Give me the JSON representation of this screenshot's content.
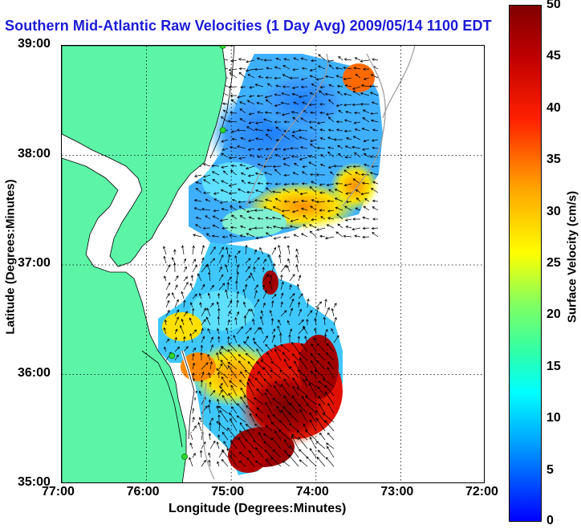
{
  "title": "Southern Mid-Atlantic Raw Velocities (1 Day Avg) 2009/05/14 1100 EDT",
  "xaxis": {
    "label": "Longitude (Degrees:Minutes)",
    "ticks": [
      "77:00",
      "76:00",
      "75:00",
      "74:00",
      "73:00",
      "72:00"
    ],
    "range": [
      -77,
      -72
    ]
  },
  "yaxis": {
    "label": "Latitude (Degrees:Minutes)",
    "ticks": [
      "39:00",
      "38:00",
      "37:00",
      "36:00",
      "35:00"
    ],
    "range": [
      35,
      39
    ]
  },
  "colorbar": {
    "label": "Surface Velocity (cm/s)",
    "ticks": [
      "50",
      "45",
      "40",
      "35",
      "30",
      "25",
      "20",
      "15",
      "10",
      "5",
      "0"
    ],
    "range": [
      0,
      50
    ]
  },
  "colors": {
    "land": "#5cf5a8",
    "title": "#1a1ad6",
    "stations": "#2fd62f",
    "grid": "#000000"
  },
  "map_features": {
    "stations": [
      {
        "lon": -75.1,
        "lat": 39.0
      },
      {
        "lon": -75.1,
        "lat": 38.23
      },
      {
        "lon": -75.7,
        "lat": 36.17
      },
      {
        "lon": -75.55,
        "lat": 35.25
      }
    ]
  }
}
